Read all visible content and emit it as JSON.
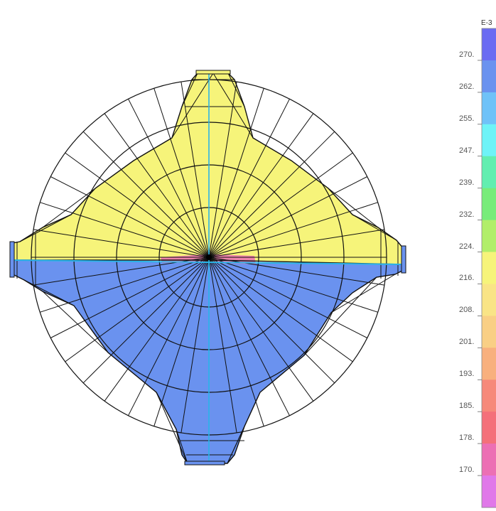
{
  "legend": {
    "exponent": "E-3",
    "labels": [
      "270.",
      "262.",
      "255.",
      "247.",
      "239.",
      "232.",
      "224.",
      "216.",
      "208.",
      "201.",
      "193.",
      "185.",
      "178.",
      "170."
    ],
    "colors": [
      "#6b6bf2",
      "#6a92ef",
      "#6fc2f8",
      "#6ef3f7",
      "#62eeb0",
      "#78ec7a",
      "#b1ee6a",
      "#f6f47a",
      "#f9e486",
      "#f9cf85",
      "#f8b07e",
      "#f6897a",
      "#f4707a",
      "#ec6fb4",
      "#e078e9"
    ]
  },
  "mesh": {
    "upper_color": "#f6f47a",
    "lower_color": "#6a92ef",
    "seam_color": "#2ab4e8",
    "center_patch_color": "#ec6fb4",
    "line_color": "#111111"
  }
}
